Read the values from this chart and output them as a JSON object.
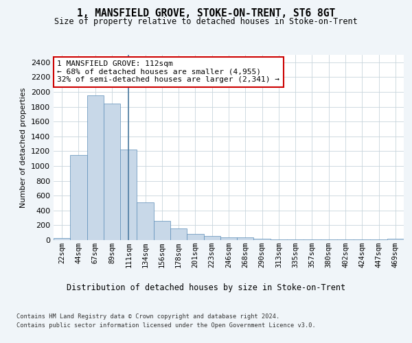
{
  "title": "1, MANSFIELD GROVE, STOKE-ON-TRENT, ST6 8GT",
  "subtitle": "Size of property relative to detached houses in Stoke-on-Trent",
  "xlabel": "Distribution of detached houses by size in Stoke-on-Trent",
  "ylabel": "Number of detached properties",
  "bar_color": "#c8d8e8",
  "bar_edge_color": "#5b8db8",
  "property_line_color": "#4a7aa0",
  "categories": [
    "22sqm",
    "44sqm",
    "67sqm",
    "89sqm",
    "111sqm",
    "134sqm",
    "156sqm",
    "178sqm",
    "201sqm",
    "223sqm",
    "246sqm",
    "268sqm",
    "290sqm",
    "313sqm",
    "335sqm",
    "357sqm",
    "380sqm",
    "402sqm",
    "424sqm",
    "447sqm",
    "469sqm"
  ],
  "values": [
    25,
    1150,
    1950,
    1840,
    1220,
    510,
    260,
    155,
    80,
    55,
    35,
    35,
    15,
    5,
    5,
    5,
    5,
    5,
    5,
    5,
    20
  ],
  "property_bin_index": 4,
  "annotation_text": "1 MANSFIELD GROVE: 112sqm\n← 68% of detached houses are smaller (4,955)\n32% of semi-detached houses are larger (2,341) →",
  "annotation_box_color": "#ffffff",
  "annotation_box_edge_color": "#cc0000",
  "ylim": [
    0,
    2500
  ],
  "yticks": [
    0,
    200,
    400,
    600,
    800,
    1000,
    1200,
    1400,
    1600,
    1800,
    2000,
    2200,
    2400
  ],
  "footer_line1": "Contains HM Land Registry data © Crown copyright and database right 2024.",
  "footer_line2": "Contains public sector information licensed under the Open Government Licence v3.0.",
  "bg_color": "#f0f5f9",
  "plot_bg_color": "#ffffff",
  "grid_color": "#c8d4dc"
}
